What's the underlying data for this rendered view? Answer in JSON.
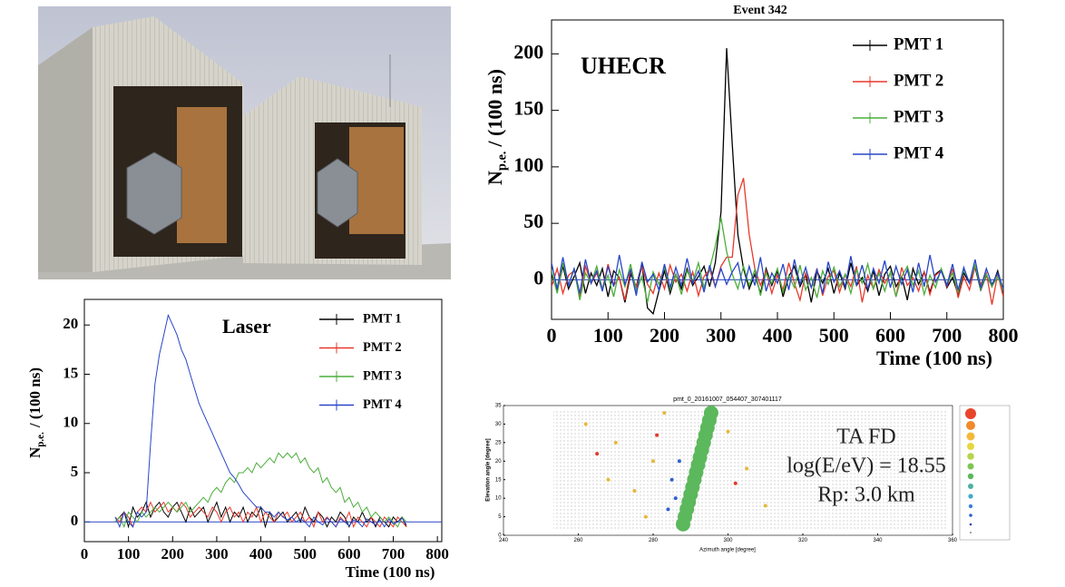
{
  "chart_data": [
    {
      "type": "line",
      "title": "Event 342",
      "annotation": "UHECR",
      "ylabel": {
        "symbol": "N",
        "subscript": "p.e.",
        "unit": "/ (100 ns)"
      },
      "xlabel": "Time (100 ns)",
      "xlim": [
        0,
        800
      ],
      "xticks": [
        0,
        100,
        200,
        300,
        400,
        500,
        600,
        700,
        800
      ],
      "ylim": [
        -35,
        230
      ],
      "yticks": [
        0,
        50,
        100,
        150,
        200
      ],
      "legend": "top-right",
      "x": [
        0,
        10,
        20,
        30,
        40,
        50,
        60,
        70,
        80,
        90,
        100,
        110,
        120,
        130,
        140,
        150,
        160,
        170,
        180,
        190,
        200,
        210,
        220,
        230,
        240,
        250,
        260,
        270,
        280,
        290,
        300,
        310,
        320,
        330,
        340,
        350,
        360,
        370,
        380,
        390,
        400,
        410,
        420,
        430,
        440,
        450,
        460,
        470,
        480,
        490,
        500,
        510,
        520,
        530,
        540,
        550,
        560,
        570,
        580,
        590,
        600,
        610,
        620,
        630,
        640,
        650,
        660,
        670,
        680,
        690,
        700,
        710,
        720,
        730,
        740,
        750,
        760,
        770,
        780,
        790,
        800
      ],
      "series": [
        {
          "name": "PMT 1",
          "color": "#000000",
          "values": [
            5,
            -10,
            12,
            -8,
            3,
            15,
            -12,
            6,
            -5,
            10,
            -15,
            8,
            2,
            -20,
            5,
            -6,
            14,
            -25,
            -30,
            -10,
            8,
            -12,
            5,
            -8,
            10,
            -5,
            3,
            12,
            -6,
            15,
            60,
            205,
            120,
            40,
            10,
            -8,
            5,
            -12,
            10,
            -5,
            8,
            -15,
            3,
            12,
            -6,
            5,
            -20,
            8,
            -3,
            10,
            -12,
            6,
            -8,
            15,
            -5,
            2,
            -10,
            8,
            -14,
            5,
            12,
            -6,
            3,
            -18,
            10,
            -4,
            7,
            -11,
            5,
            9,
            -7,
            2,
            -13,
            6,
            -3,
            11,
            -9,
            4,
            -6,
            8,
            -10
          ]
        },
        {
          "name": "PMT 2",
          "color": "#e8382b",
          "values": [
            -6,
            10,
            -12,
            4,
            8,
            -15,
            12,
            -3,
            6,
            -9,
            14,
            -5,
            2,
            -18,
            9,
            -7,
            11,
            -4,
            -12,
            6,
            -8,
            13,
            -2,
            5,
            -10,
            7,
            -14,
            3,
            9,
            -6,
            12,
            20,
            20,
            75,
            90,
            40,
            10,
            -5,
            8,
            -12,
            4,
            -9,
            15,
            -3,
            -18,
            6,
            -7,
            10,
            -14,
            3,
            8,
            -11,
            5,
            -6,
            12,
            -20,
            4,
            -8,
            9,
            -3,
            6,
            -15,
            11,
            -5,
            2,
            -10,
            7,
            -13,
            4,
            8,
            -6,
            10,
            -16,
            3,
            -9,
            12,
            -4,
            6,
            -22,
            5,
            -15
          ]
        },
        {
          "name": "PMT 3",
          "color": "#4cae3c",
          "values": [
            8,
            -12,
            15,
            -5,
            10,
            -18,
            6,
            -3,
            12,
            -8,
            4,
            -15,
            9,
            -6,
            14,
            -10,
            3,
            -20,
            7,
            -4,
            11,
            -9,
            5,
            -13,
            8,
            -2,
            15,
            -7,
            10,
            30,
            55,
            25,
            5,
            -8,
            12,
            -5,
            9,
            -14,
            6,
            -3,
            10,
            -11,
            4,
            -7,
            13,
            -9,
            2,
            -16,
            8,
            -4,
            11,
            -6,
            5,
            -12,
            9,
            -3,
            14,
            -8,
            6,
            -10,
            7,
            -15,
            3,
            12,
            -5,
            8,
            -13,
            4,
            -7,
            10,
            -4,
            6,
            -11,
            9,
            -2,
            13,
            -8,
            5,
            -6,
            3,
            -9
          ]
        },
        {
          "name": "PMT 4",
          "color": "#2846c8",
          "values": [
            15,
            -8,
            20,
            -5,
            10,
            -12,
            18,
            -3,
            8,
            -10,
            12,
            -6,
            22,
            -4,
            9,
            -14,
            16,
            -2,
            5,
            -9,
            14,
            -7,
            11,
            -5,
            19,
            -3,
            8,
            -11,
            13,
            -6,
            10,
            -4,
            7,
            15,
            -8,
            12,
            -5,
            20,
            -10,
            6,
            -3,
            14,
            -9,
            18,
            -4,
            11,
            -7,
            9,
            -12,
            16,
            -2,
            8,
            -6,
            21,
            -5,
            13,
            -8,
            10,
            -3,
            17,
            -7,
            12,
            -4,
            9,
            -11,
            15,
            -6,
            22,
            -2,
            8,
            -5,
            14,
            -9,
            11,
            -3,
            18,
            -7,
            10,
            -4,
            6,
            -8
          ]
        }
      ]
    },
    {
      "type": "line",
      "annotation": "Laser",
      "ylabel": {
        "symbol": "N",
        "subscript": "p.e.",
        "unit": "/ (100 ns)"
      },
      "xlabel": "Time (100 ns)",
      "xlim": [
        0,
        810
      ],
      "xticks": [
        0,
        100,
        200,
        300,
        400,
        500,
        600,
        700,
        800
      ],
      "ylim": [
        -2,
        22.6
      ],
      "yticks": [
        0,
        5,
        10,
        15,
        20
      ],
      "legend": "top-right",
      "x": [
        70,
        80,
        90,
        100,
        110,
        120,
        130,
        140,
        150,
        160,
        170,
        180,
        190,
        200,
        210,
        220,
        230,
        240,
        250,
        260,
        270,
        280,
        290,
        300,
        310,
        320,
        330,
        340,
        350,
        360,
        370,
        380,
        390,
        400,
        410,
        420,
        430,
        440,
        450,
        460,
        470,
        480,
        490,
        500,
        510,
        520,
        530,
        540,
        550,
        560,
        570,
        580,
        590,
        600,
        610,
        620,
        630,
        640,
        650,
        660,
        670,
        680,
        690,
        700,
        710,
        720,
        730
      ],
      "series": [
        {
          "name": "PMT 1",
          "color": "#000000",
          "values": [
            0,
            0.5,
            1,
            -0.5,
            1.5,
            0.5,
            1,
            2,
            0.5,
            1.5,
            2,
            1,
            0.5,
            1.5,
            2,
            1,
            0,
            1.5,
            0.5,
            1,
            1.5,
            0,
            1,
            2,
            0.5,
            1.5,
            0,
            1,
            0.5,
            1.5,
            0,
            1,
            0.5,
            1.5,
            -0.5,
            1,
            0,
            0.5,
            1,
            0,
            0.5,
            1,
            0,
            1.5,
            0.5,
            0,
            1,
            0.5,
            -0.5,
            0.5,
            0,
            1,
            0.5,
            -0.5,
            0.5,
            0,
            1,
            0,
            0.5,
            -0.5,
            0.5,
            0,
            -0.5,
            0.5,
            0,
            0.5,
            -0.5
          ]
        },
        {
          "name": "PMT 2",
          "color": "#e8382b",
          "values": [
            0.5,
            0,
            1,
            0.5,
            -0.5,
            1,
            1.5,
            1,
            2,
            1,
            1.5,
            2,
            1,
            1.5,
            1,
            2,
            1.5,
            0.5,
            1,
            1.5,
            1,
            0.5,
            1.5,
            1,
            0,
            1,
            1.5,
            0.5,
            1,
            0,
            1,
            0.5,
            1.5,
            0,
            1,
            0.5,
            0,
            1,
            0.5,
            1,
            0,
            0.5,
            1,
            0,
            0.5,
            -0.5,
            1,
            0,
            0.5,
            0,
            -0.5,
            0.5,
            0,
            1,
            -0.5,
            0.5,
            0,
            -0.5,
            0.5,
            0,
            -0.5,
            0.5,
            0,
            -0.5,
            0.5,
            0,
            -0.5
          ]
        },
        {
          "name": "PMT 3",
          "color": "#4cae3c",
          "values": [
            0,
            0.5,
            -0.5,
            1,
            0.5,
            0,
            1,
            0.5,
            1,
            1.5,
            1,
            1.5,
            2,
            1.5,
            1,
            1.5,
            2,
            1,
            1.5,
            2,
            2.5,
            2,
            3,
            3.5,
            3,
            4,
            4.5,
            4,
            5,
            5,
            5.5,
            5,
            6,
            5.5,
            6,
            6.5,
            6,
            7,
            6.5,
            7,
            6.5,
            7,
            6,
            6.5,
            5.5,
            5,
            5.5,
            4,
            4.5,
            3.5,
            3,
            3.5,
            2,
            2.5,
            1.5,
            2,
            1,
            1.5,
            0.5,
            1,
            0.5,
            0,
            0.5,
            0,
            -0.5,
            0.5,
            0
          ]
        },
        {
          "name": "PMT 4",
          "color": "#2846c8",
          "values": [
            0.5,
            -0.5,
            1,
            0,
            -0.5,
            1,
            0.5,
            1,
            8,
            14,
            17,
            19,
            21,
            20,
            19,
            17.5,
            16.5,
            15,
            13.5,
            12,
            11,
            10,
            9,
            8,
            7,
            6,
            5,
            4.5,
            3.8,
            3,
            2.5,
            2,
            1.5,
            1.5,
            1,
            1,
            0.5,
            1,
            0.5,
            0.2,
            0.5,
            0,
            0.3,
            0,
            -0.5,
            0.5,
            0,
            -0.3,
            0.4,
            0,
            -0.5,
            0.3,
            0,
            -0.4,
            0.2,
            0,
            -0.5,
            0.3,
            0,
            -0.3,
            0.2,
            -0.5,
            0.3,
            -0.2,
            0,
            0.4,
            -0.3
          ]
        }
      ]
    },
    {
      "type": "scatter",
      "title": "pmt_0_20161007_054407_307401117",
      "xlabel": "Azimuth angle [degree]",
      "ylabel": "Elevation angle [degree]",
      "annotations": [
        "TA FD",
        "log(E/eV) = 18.55",
        "Rp: 3.0 km"
      ],
      "xlim": [
        240,
        360
      ],
      "xticks": [
        240,
        260,
        280,
        300,
        320,
        340,
        360
      ],
      "ylim": [
        0,
        35
      ],
      "yticks": [
        0,
        5,
        10,
        15,
        20,
        25,
        30,
        35
      ],
      "series": [
        {
          "color": "#5cb85c",
          "x": [
            288,
            288.5,
            289,
            289.5,
            290,
            290.5,
            291,
            291.5,
            292,
            292.5,
            293,
            293.5,
            294,
            294.5,
            295,
            295.5
          ],
          "y": [
            3,
            5,
            7,
            9,
            11,
            13,
            15,
            17,
            19,
            21,
            23,
            25,
            27,
            29,
            31,
            33
          ]
        },
        {
          "color": "#2f5fd0",
          "x": [
            286,
            285,
            287,
            284
          ],
          "y": [
            10,
            15,
            20,
            7
          ]
        },
        {
          "color": "#e7b93a",
          "x": [
            262,
            270,
            275,
            280,
            283,
            300,
            305,
            310,
            268,
            278
          ],
          "y": [
            30,
            25,
            12,
            20,
            33,
            28,
            18,
            8,
            15,
            5
          ]
        },
        {
          "color": "#e03a2a",
          "x": [
            265,
            281,
            302
          ],
          "y": [
            22,
            27,
            14
          ]
        }
      ]
    }
  ]
}
